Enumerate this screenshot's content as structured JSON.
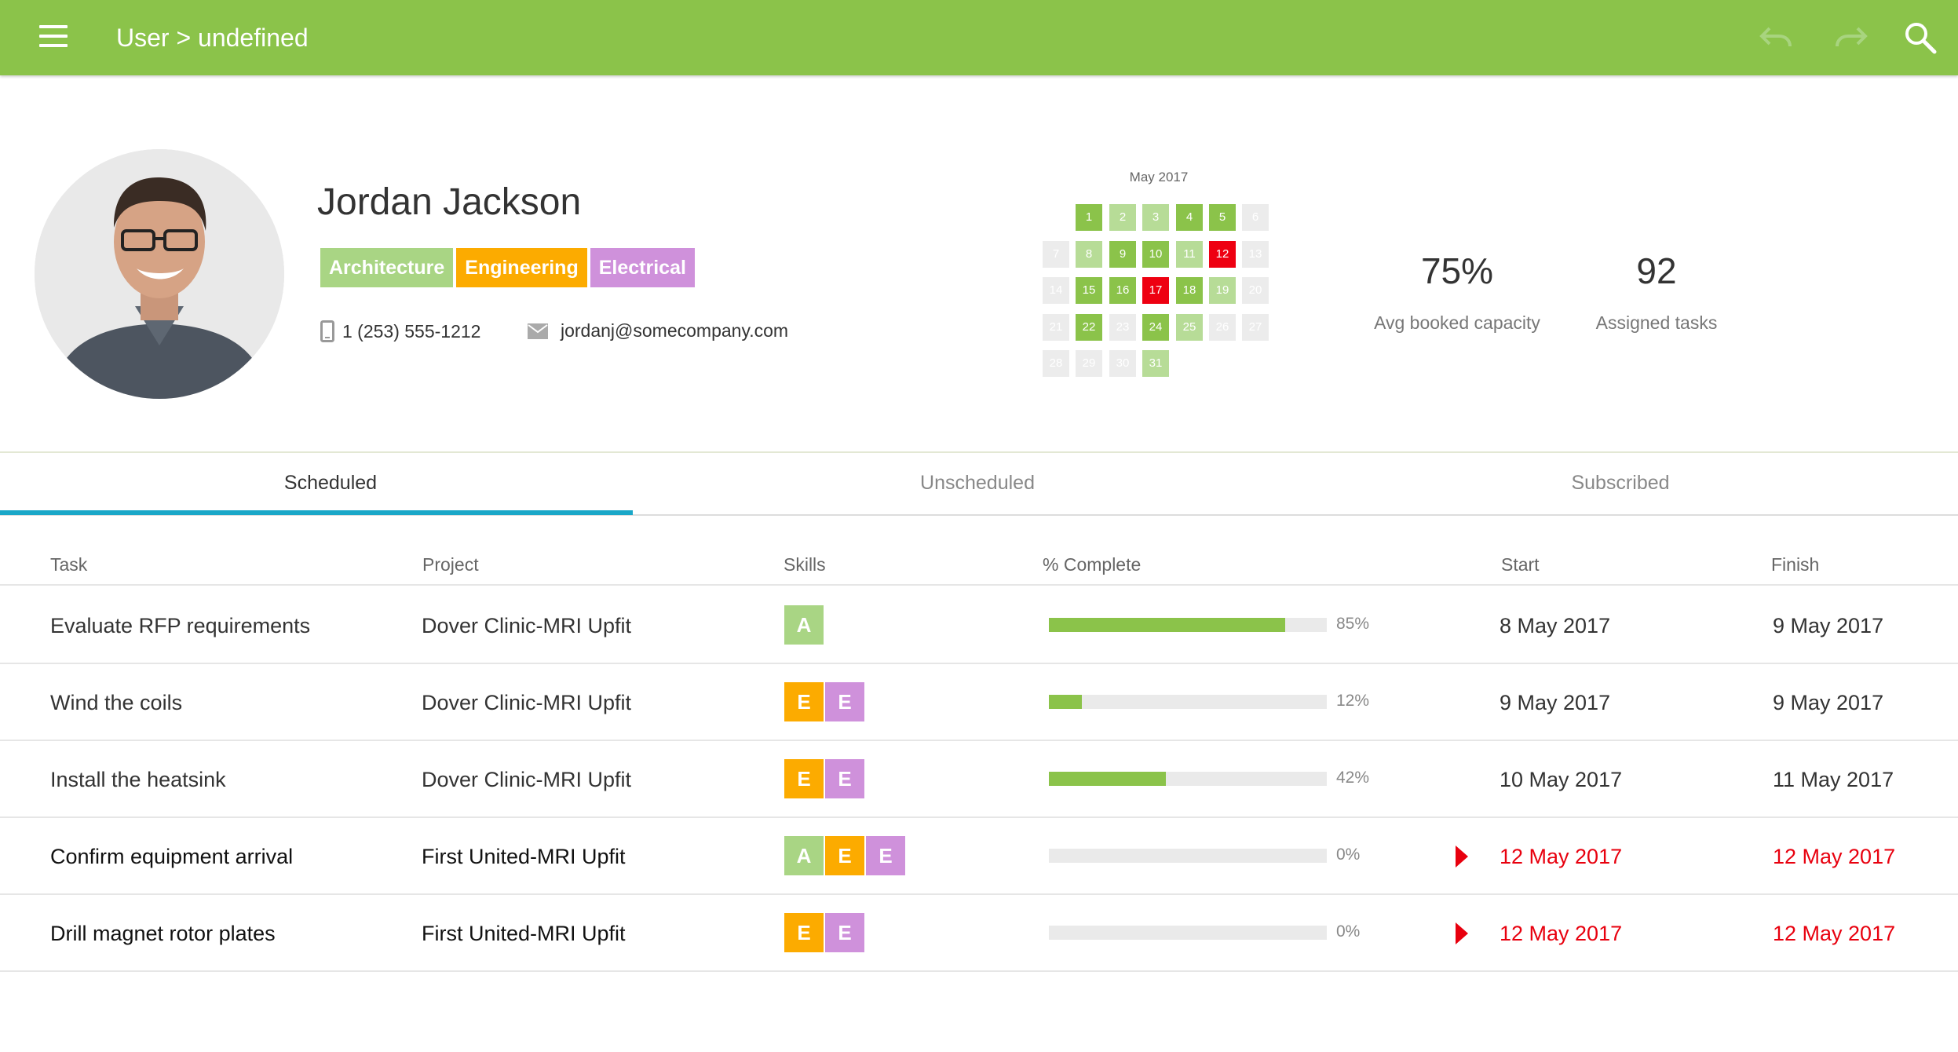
{
  "header": {
    "title": "User > undefined",
    "icons": {
      "menu": "menu-icon",
      "undo": "undo-icon",
      "redo": "redo-icon",
      "search": "search-icon"
    },
    "color": "#8bc34a"
  },
  "profile": {
    "name": "Jordan Jackson",
    "skills": [
      {
        "label": "Architecture",
        "color": "#a9d584"
      },
      {
        "label": "Engineering",
        "color": "#fcab00"
      },
      {
        "label": "Electrical",
        "color": "#cf91db"
      }
    ],
    "phone": "1 (253) 555-1212",
    "email": "jordanj@somecompany.com"
  },
  "calendar": {
    "title": "May 2017",
    "colors": {
      "full": "#8bc34a",
      "partial": "#b7dc97",
      "empty": "#ececec",
      "overbooked": "#ee0011"
    },
    "days": [
      {
        "day": "1",
        "status": "full"
      },
      {
        "day": "2",
        "status": "partial"
      },
      {
        "day": "3",
        "status": "partial"
      },
      {
        "day": "4",
        "status": "full"
      },
      {
        "day": "5",
        "status": "full"
      },
      {
        "day": "6",
        "status": "empty"
      },
      {
        "day": "7",
        "status": "empty"
      },
      {
        "day": "8",
        "status": "partial"
      },
      {
        "day": "9",
        "status": "full"
      },
      {
        "day": "10",
        "status": "full"
      },
      {
        "day": "11",
        "status": "partial"
      },
      {
        "day": "12",
        "status": "overbooked"
      },
      {
        "day": "13",
        "status": "empty"
      },
      {
        "day": "14",
        "status": "empty"
      },
      {
        "day": "15",
        "status": "full"
      },
      {
        "day": "16",
        "status": "full"
      },
      {
        "day": "17",
        "status": "overbooked"
      },
      {
        "day": "18",
        "status": "full"
      },
      {
        "day": "19",
        "status": "partial"
      },
      {
        "day": "20",
        "status": "empty"
      },
      {
        "day": "21",
        "status": "empty"
      },
      {
        "day": "22",
        "status": "full"
      },
      {
        "day": "23",
        "status": "empty"
      },
      {
        "day": "24",
        "status": "full"
      },
      {
        "day": "25",
        "status": "partial"
      },
      {
        "day": "26",
        "status": "empty"
      },
      {
        "day": "27",
        "status": "empty"
      },
      {
        "day": "28",
        "status": "empty"
      },
      {
        "day": "29",
        "status": "empty"
      },
      {
        "day": "30",
        "status": "empty"
      },
      {
        "day": "31",
        "status": "partial"
      }
    ]
  },
  "stats": {
    "capacity": {
      "value": "75%",
      "label": "Avg booked capacity"
    },
    "tasks": {
      "value": "92",
      "label": "Assigned tasks"
    }
  },
  "tabs": [
    {
      "label": "Scheduled",
      "active": true
    },
    {
      "label": "Unscheduled",
      "active": false
    },
    {
      "label": "Subscribed",
      "active": false
    }
  ],
  "table": {
    "headers": {
      "task": "Task",
      "project": "Project",
      "skills": "Skills",
      "complete": "% Complete",
      "start": "Start",
      "finish": "Finish"
    },
    "rows": [
      {
        "task": "Evaluate RFP requirements",
        "project": "Dover Clinic-MRI Upfit",
        "skills": [
          "A"
        ],
        "percent": 85,
        "percent_label": "85%",
        "start": "8 May 2017",
        "finish": "9 May 2017",
        "overdue": false
      },
      {
        "task": "Wind the coils",
        "project": "Dover Clinic-MRI Upfit",
        "skills": [
          "E",
          "E"
        ],
        "percent": 12,
        "percent_label": "12%",
        "start": "9 May 2017",
        "finish": "9 May 2017",
        "overdue": false
      },
      {
        "task": "Install the heatsink",
        "project": "Dover Clinic-MRI Upfit",
        "skills": [
          "E",
          "E"
        ],
        "percent": 42,
        "percent_label": "42%",
        "start": "10 May 2017",
        "finish": "11 May 2017",
        "overdue": false
      },
      {
        "task": "Confirm equipment arrival",
        "project": "First United-MRI Upfit",
        "skills": [
          "A",
          "E",
          "E"
        ],
        "percent": 0,
        "percent_label": "0%",
        "start": "12 May 2017",
        "finish": "12 May 2017",
        "overdue": true
      },
      {
        "task": "Drill magnet rotor plates",
        "project": "First United-MRI Upfit",
        "skills": [
          "E",
          "E"
        ],
        "percent": 0,
        "percent_label": "0%",
        "start": "12 May 2017",
        "finish": "12 May 2017",
        "overdue": true
      }
    ],
    "skill_chip_colors": [
      "#a9d584",
      "#fcab00",
      "#cf91db"
    ]
  }
}
